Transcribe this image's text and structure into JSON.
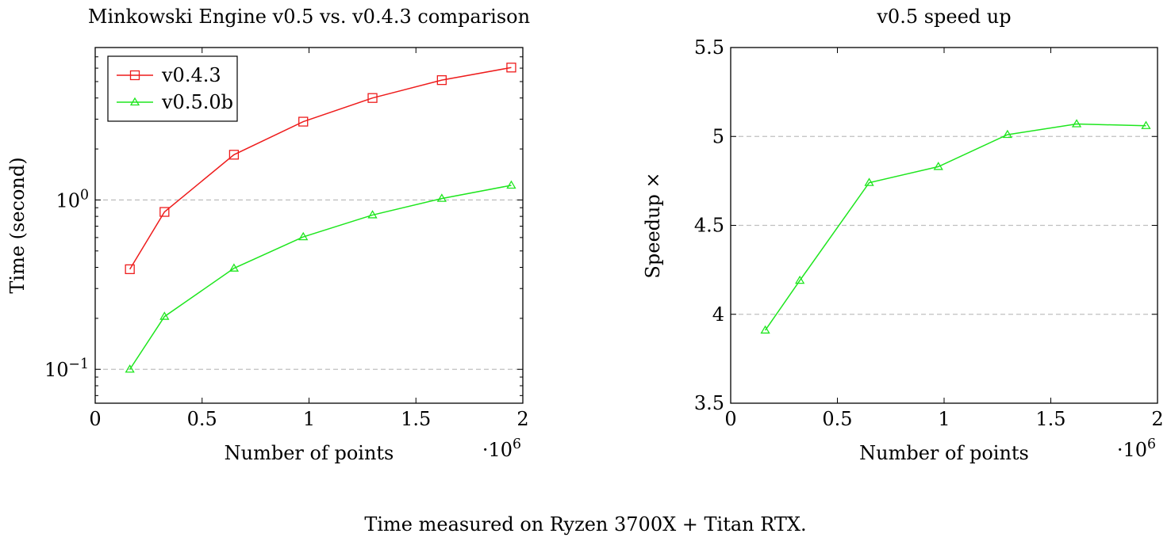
{
  "caption": "Time measured on Ryzen 3700X + Titan RTX.",
  "colors": {
    "red_series": "#ee1c1c",
    "green_series": "#1ee61e",
    "grid": "#c0c0c0",
    "axis": "#000000"
  },
  "chart_data": [
    {
      "type": "line",
      "title": "Minkowski Engine v0.5 vs. v0.4.3 comparison",
      "xlabel": "Number of points",
      "ylabel": "Time (second)",
      "x_scale_label": "·10",
      "x_scale_exp": "6",
      "xscale": "linear",
      "yscale": "log",
      "xlim": [
        0,
        2
      ],
      "ylim_log10": [
        -1.2,
        0.9
      ],
      "x_ticks": [
        0,
        0.5,
        1,
        1.5,
        2
      ],
      "x_tick_labels": [
        "0",
        "0.5",
        "1",
        "1.5",
        "2"
      ],
      "y_ticks_log10": [
        -1,
        0
      ],
      "y_tick_labels": [
        {
          "base": "10",
          "exp": "−1"
        },
        {
          "base": "10",
          "exp": "0"
        }
      ],
      "grid": "y-major dashed",
      "legend": "top-left",
      "x": [
        0.162,
        0.324,
        0.649,
        0.973,
        1.297,
        1.621,
        1.946
      ],
      "series": [
        {
          "name": "v0.4.3",
          "marker": "square",
          "color": "#ee1c1c",
          "values": [
            0.39,
            0.85,
            1.85,
            2.9,
            4.0,
            5.1,
            6.05
          ]
        },
        {
          "name": "v0.5.0b",
          "marker": "triangle",
          "color": "#1ee61e",
          "values": [
            0.1,
            0.205,
            0.395,
            0.605,
            0.815,
            1.02,
            1.22
          ]
        }
      ]
    },
    {
      "type": "line",
      "title": "v0.5 speed up",
      "xlabel": "Number of points",
      "ylabel": "Speedup ×",
      "x_scale_label": "·10",
      "x_scale_exp": "6",
      "xscale": "linear",
      "yscale": "linear",
      "xlim": [
        0,
        2
      ],
      "ylim": [
        3.5,
        5.5
      ],
      "x_ticks": [
        0,
        0.5,
        1,
        1.5,
        2
      ],
      "x_tick_labels": [
        "0",
        "0.5",
        "1",
        "1.5",
        "2"
      ],
      "y_ticks": [
        3.5,
        4,
        4.5,
        5,
        5.5
      ],
      "y_tick_labels": [
        "3.5",
        "4",
        "4.5",
        "5",
        "5.5"
      ],
      "grid": "y-major dashed",
      "x": [
        0.162,
        0.324,
        0.649,
        0.973,
        1.297,
        1.621,
        1.946
      ],
      "series": [
        {
          "name": "speedup",
          "marker": "triangle",
          "color": "#1ee61e",
          "values": [
            3.91,
            4.19,
            4.74,
            4.83,
            5.01,
            5.07,
            5.06
          ]
        }
      ]
    }
  ]
}
